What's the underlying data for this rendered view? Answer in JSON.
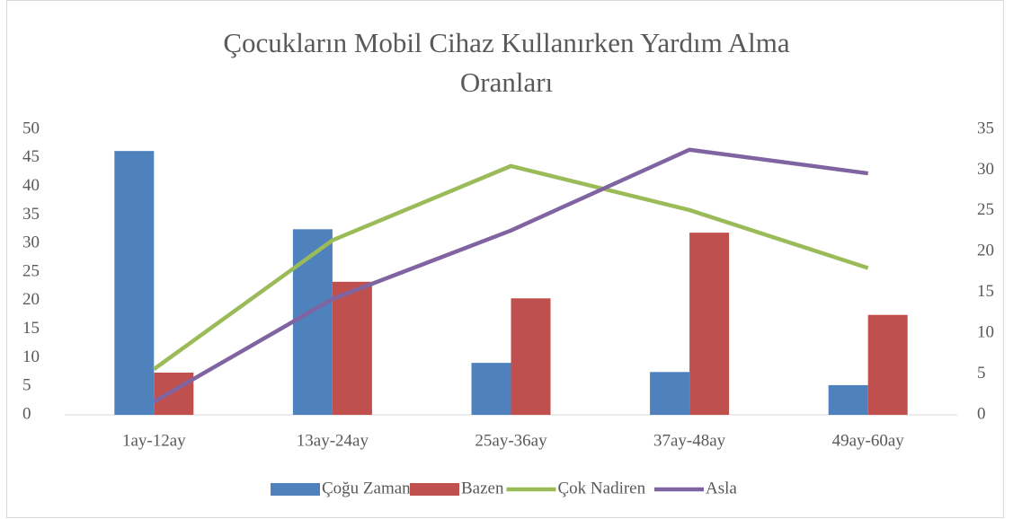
{
  "chart_data": {
    "type": "combo",
    "title": "Çocukların Mobil Cihaz Kullanırken Yardım Alma Oranları",
    "categories": [
      "1ay-12ay",
      "13ay-24ay",
      "25ay-36ay",
      "37ay-48ay",
      "49ay-60ay"
    ],
    "series": [
      {
        "name": "Çoğu Zaman",
        "type": "bar",
        "color": "#4f81bd",
        "values": [
          46.2,
          32.5,
          9.1,
          7.5,
          5.2
        ]
      },
      {
        "name": "Bazen",
        "type": "bar",
        "color": "#c0504d",
        "values": [
          7.4,
          23.3,
          20.4,
          31.9,
          17.5
        ]
      },
      {
        "name": "Çok Nadiren",
        "type": "line",
        "axis": "y2",
        "color": "#9bbb59",
        "values": [
          5.6,
          21.4,
          30.5,
          25.1,
          18.0
        ]
      },
      {
        "name": "Asla",
        "type": "line",
        "axis": "y2",
        "color": "#8064a2",
        "values": [
          1.6,
          14.2,
          22.6,
          32.5,
          29.6
        ]
      }
    ],
    "ylim": [
      0,
      50
    ],
    "yticks": [
      0,
      5,
      10,
      15,
      20,
      25,
      30,
      35,
      40,
      45,
      50
    ],
    "y2lim": [
      0,
      35
    ],
    "y2ticks": [
      0,
      5,
      10,
      15,
      20,
      25,
      30,
      35
    ],
    "grid": false,
    "legend": "bottom"
  }
}
